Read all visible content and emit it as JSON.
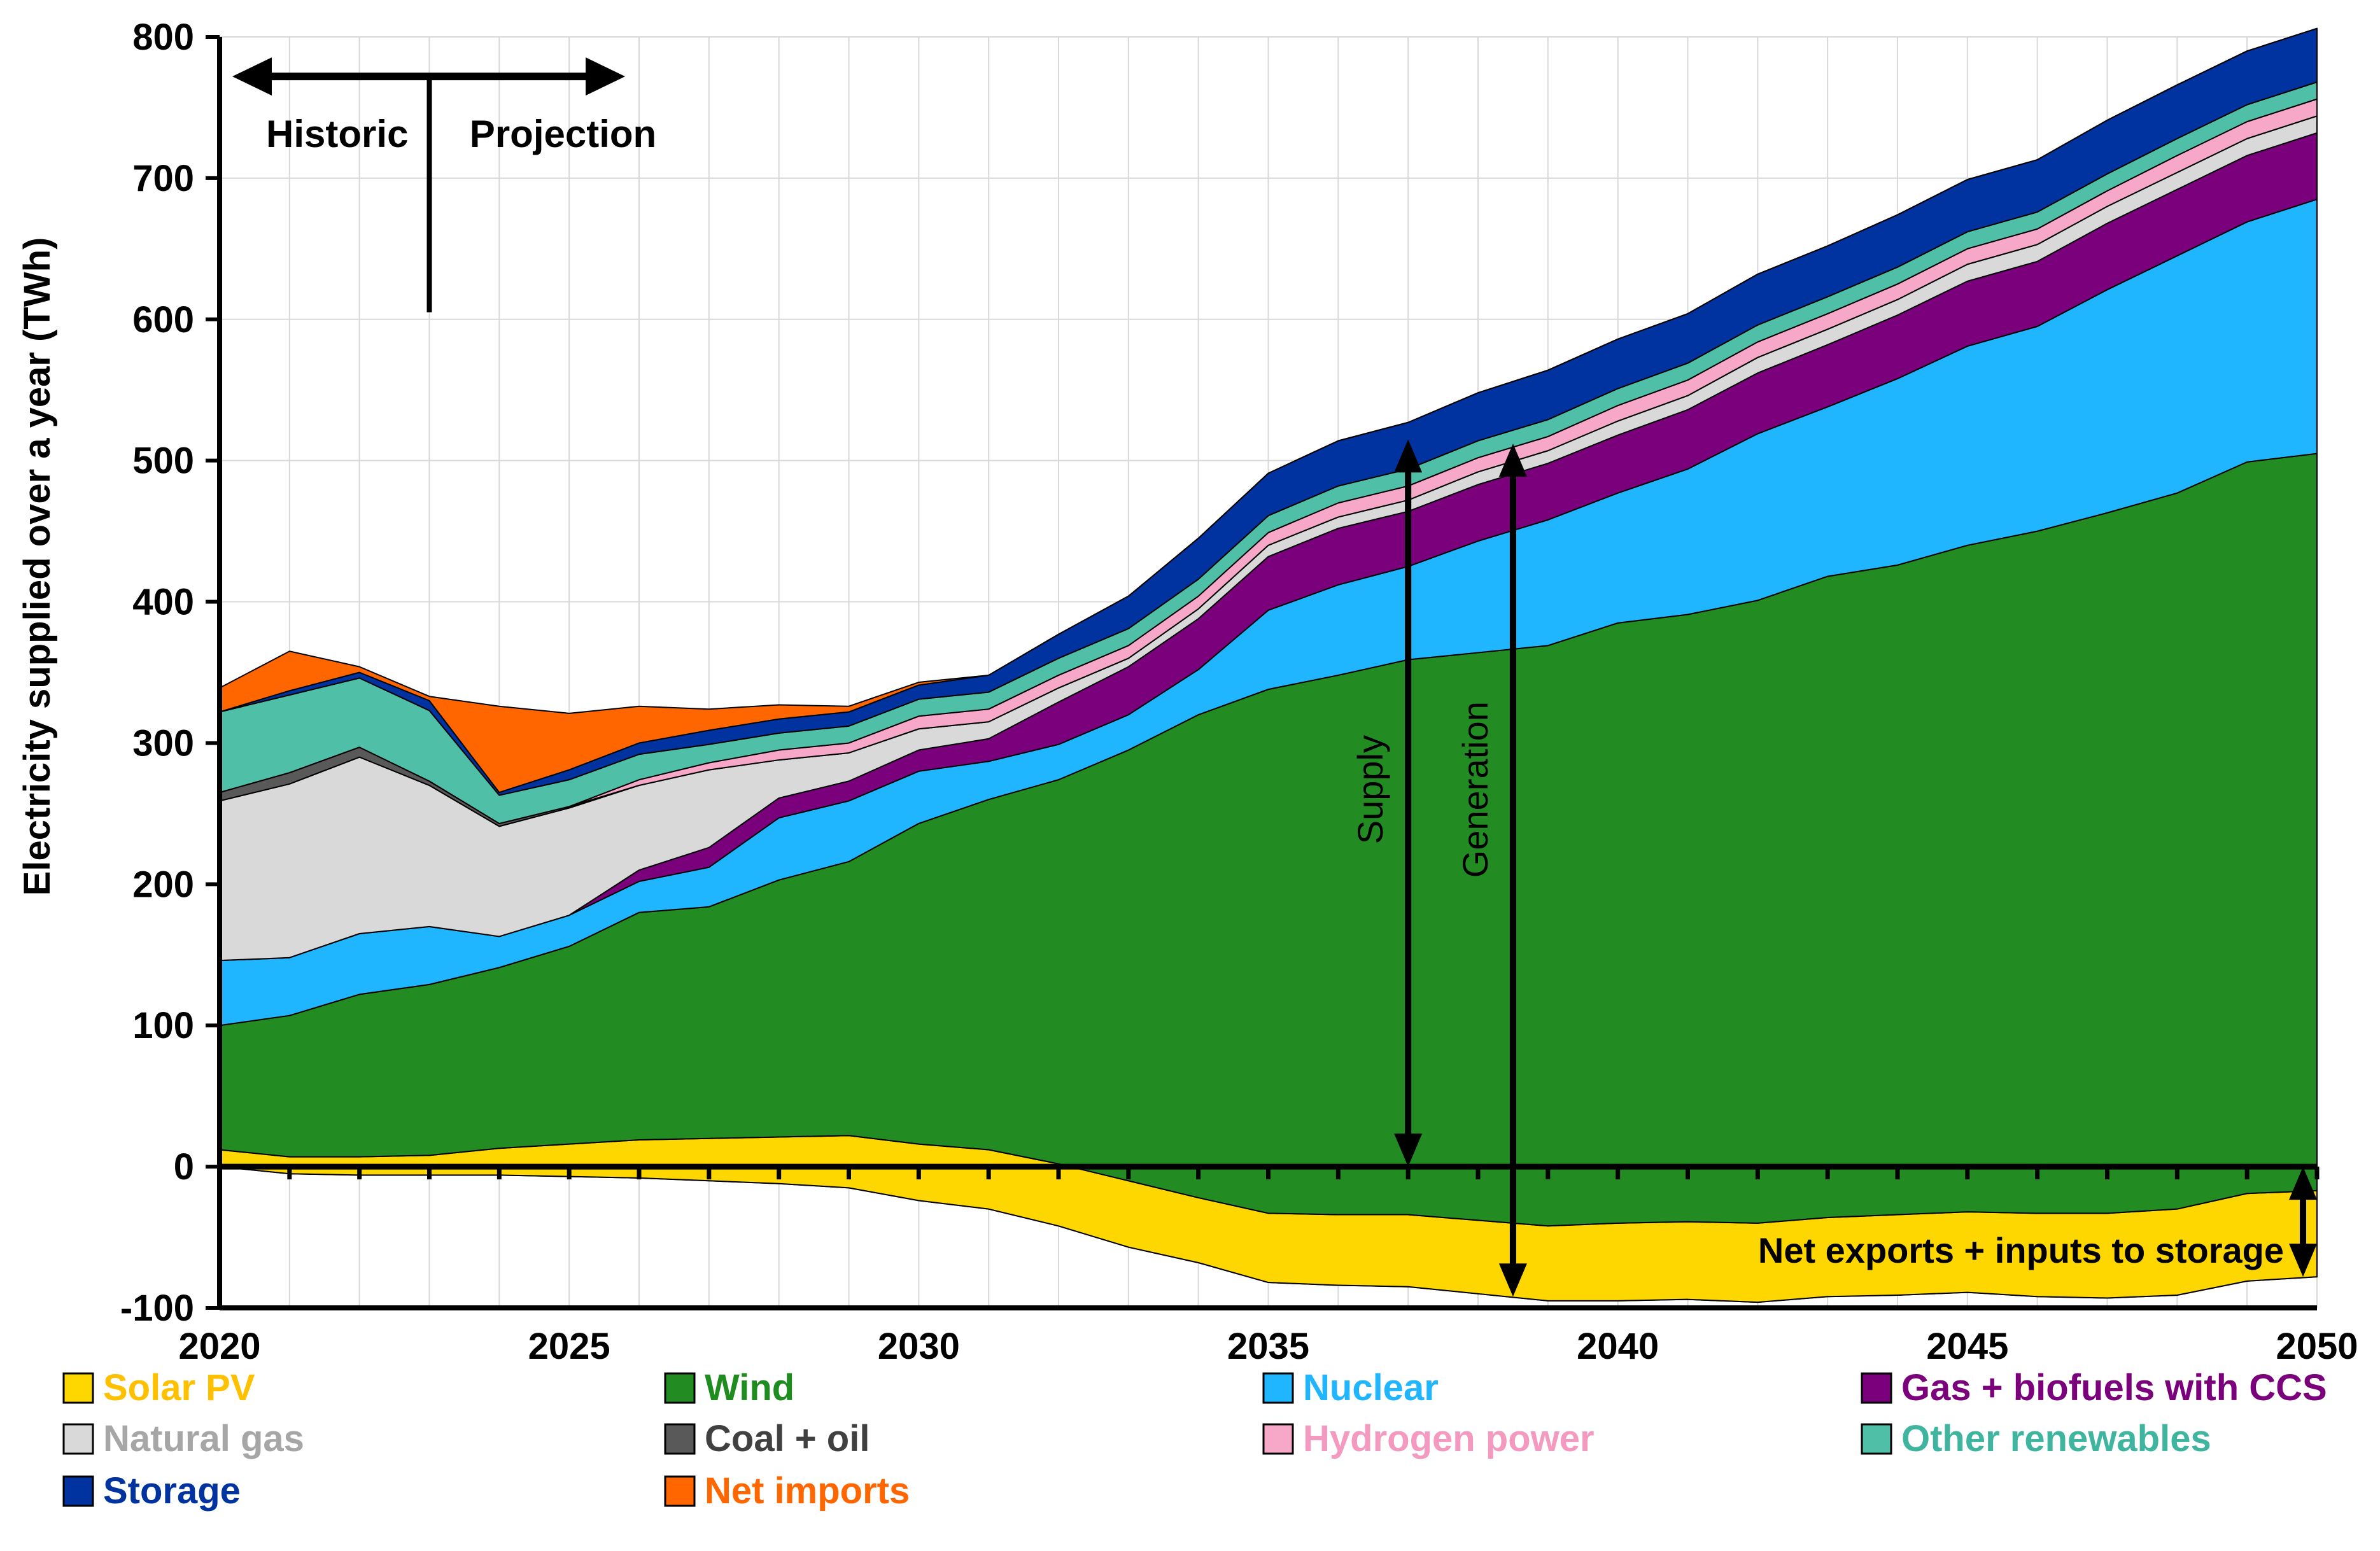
{
  "chart_data": {
    "type": "area",
    "ylabel": "Electricity supplied over a year (TWh)",
    "xlabel": "",
    "xlim": [
      2020,
      2050
    ],
    "ylim": [
      -100,
      800
    ],
    "x_tick_labels": [
      "2020",
      "2025",
      "2030",
      "2035",
      "2040",
      "2045",
      "2050"
    ],
    "y_tick_labels": [
      "800",
      "700",
      "600",
      "500",
      "400",
      "300",
      "200",
      "100",
      "0",
      "-100"
    ],
    "x": [
      2020,
      2021,
      2022,
      2023,
      2024,
      2025,
      2026,
      2027,
      2028,
      2029,
      2030,
      2031,
      2032,
      2033,
      2034,
      2035,
      2036,
      2037,
      2038,
      2039,
      2040,
      2041,
      2042,
      2043,
      2044,
      2045,
      2046,
      2047,
      2048,
      2049,
      2050
    ],
    "negative_series": {
      "name": "Net exports + inputs to storage",
      "color": "#FFD700",
      "values": [
        0,
        -5,
        -6,
        -6,
        -6,
        -7,
        -8,
        -10,
        -12,
        -15,
        -24,
        -30,
        -42,
        -57,
        -68,
        -82,
        -84,
        -85,
        -90,
        -95,
        -95,
        -94,
        -96,
        -92,
        -91,
        -89,
        -92,
        -93,
        -91,
        -81,
        -78
      ]
    },
    "series": [
      {
        "name": "Solar PV",
        "color": "#FFD700",
        "values": [
          12,
          7,
          7,
          8,
          13,
          16,
          19,
          20,
          21,
          22,
          16,
          12,
          2,
          -10,
          -22,
          -33,
          -34,
          -34,
          -38,
          -42,
          -40,
          -39,
          -40,
          -36,
          -34,
          -32,
          -33,
          -33,
          -30,
          -19,
          -17
        ]
      },
      {
        "name": "Wind",
        "color": "#228B22",
        "values": [
          88,
          100,
          115,
          121,
          128,
          140,
          161,
          164,
          182,
          194,
          227,
          248,
          272,
          305,
          342,
          371,
          382,
          393,
          402,
          411,
          425,
          430,
          441,
          454,
          460,
          472,
          483,
          496,
          507,
          518,
          522
        ]
      },
      {
        "name": "Nuclear",
        "color": "#1FB6FF",
        "values": [
          46,
          41,
          43,
          41,
          22,
          22,
          22,
          28,
          44,
          43,
          37,
          27,
          25,
          25,
          32,
          56,
          64,
          66,
          79,
          89,
          92,
          103,
          118,
          120,
          132,
          141,
          145,
          158,
          168,
          170,
          180
        ]
      },
      {
        "name": "Gas + biofuels with CCS",
        "color": "#7B007B",
        "values": [
          0,
          0,
          0,
          0,
          0,
          0,
          8,
          14,
          14,
          14,
          15,
          16,
          30,
          34,
          36,
          38,
          40,
          39,
          40,
          40,
          41,
          42,
          43,
          44,
          45,
          46,
          46,
          47,
          47,
          47,
          47
        ]
      },
      {
        "name": "Natural gas",
        "color": "#D9D9D9",
        "values": [
          113,
          123,
          125,
          100,
          78,
          76,
          60,
          55,
          27,
          20,
          15,
          12,
          10,
          6,
          7,
          8,
          8,
          8,
          9,
          9,
          10,
          10,
          11,
          11,
          11,
          12,
          12,
          12,
          12,
          12,
          12
        ]
      },
      {
        "name": "Coal + oil",
        "color": "#595959",
        "values": [
          6,
          8,
          7,
          3,
          2,
          1,
          0,
          0,
          0,
          0,
          0,
          0,
          0,
          0,
          0,
          0,
          0,
          0,
          0,
          0,
          0,
          0,
          0,
          0,
          0,
          0,
          0,
          0,
          0,
          0,
          0
        ]
      },
      {
        "name": "Hydrogen power",
        "color": "#F7A8C8",
        "values": [
          0,
          0,
          0,
          0,
          0,
          0,
          4,
          5,
          7,
          7,
          9,
          9,
          9,
          9,
          9,
          9,
          10,
          10,
          10,
          10,
          11,
          11,
          11,
          11,
          11,
          11,
          11,
          11,
          12,
          12,
          12
        ]
      },
      {
        "name": "Other renewables",
        "color": "#4FBFA8",
        "values": [
          57,
          55,
          49,
          50,
          20,
          19,
          18,
          13,
          12,
          12,
          12,
          12,
          12,
          12,
          12,
          12,
          12,
          12,
          12,
          12,
          12,
          12,
          12,
          12,
          12,
          12,
          12,
          12,
          12,
          12,
          12
        ]
      },
      {
        "name": "Storage",
        "color": "#0033A0",
        "values": [
          0,
          3,
          4,
          7,
          2,
          7,
          8,
          10,
          10,
          10,
          10,
          12,
          17,
          23,
          29,
          30,
          32,
          33,
          34,
          35,
          35,
          35,
          36,
          36,
          37,
          37,
          37,
          38,
          38,
          38,
          38
        ]
      },
      {
        "name": "Net imports",
        "color": "#FF6600",
        "values": [
          17,
          28,
          4,
          3,
          61,
          40,
          26,
          15,
          10,
          4,
          2,
          0,
          0,
          0,
          0,
          0,
          0,
          0,
          0,
          0,
          0,
          0,
          0,
          0,
          0,
          0,
          0,
          0,
          0,
          0,
          0
        ]
      }
    ],
    "legend": [
      {
        "name": "Solar PV",
        "color": "#FFD700",
        "text_color": "#FFC000"
      },
      {
        "name": "Wind",
        "color": "#228B22",
        "text_color": "#1E8C1E"
      },
      {
        "name": "Nuclear",
        "color": "#1FB6FF",
        "text_color": "#1FB6FF"
      },
      {
        "name": "Gas + biofuels with CCS",
        "color": "#7B007B",
        "text_color": "#7B007B"
      },
      {
        "name": "Natural gas",
        "color": "#D9D9D9",
        "text_color": "#A6A6A6"
      },
      {
        "name": "Coal + oil",
        "color": "#595959",
        "text_color": "#404040"
      },
      {
        "name": "Hydrogen power",
        "color": "#F7A8C8",
        "text_color": "#F49AC1"
      },
      {
        "name": "Other renewables",
        "color": "#4FBFA8",
        "text_color": "#3FB5A0"
      },
      {
        "name": "Storage",
        "color": "#0033A0",
        "text_color": "#0033A0"
      },
      {
        "name": "Net imports",
        "color": "#FF6600",
        "text_color": "#FF6600"
      }
    ],
    "legend_position": "bottom",
    "grid": true,
    "annotations": {
      "historic": "Historic",
      "projection": "Projection",
      "historic_projection_divider_year": 2023,
      "supply": "Supply",
      "supply_year": 2037,
      "supply_range_twh": [
        0,
        515
      ],
      "generation": "Generation",
      "generation_year": 2038.5,
      "generation_range_twh": [
        -92,
        512
      ],
      "net_exports": "Net exports + inputs to storage",
      "net_exports_range_twh": [
        -78,
        0
      ]
    }
  }
}
